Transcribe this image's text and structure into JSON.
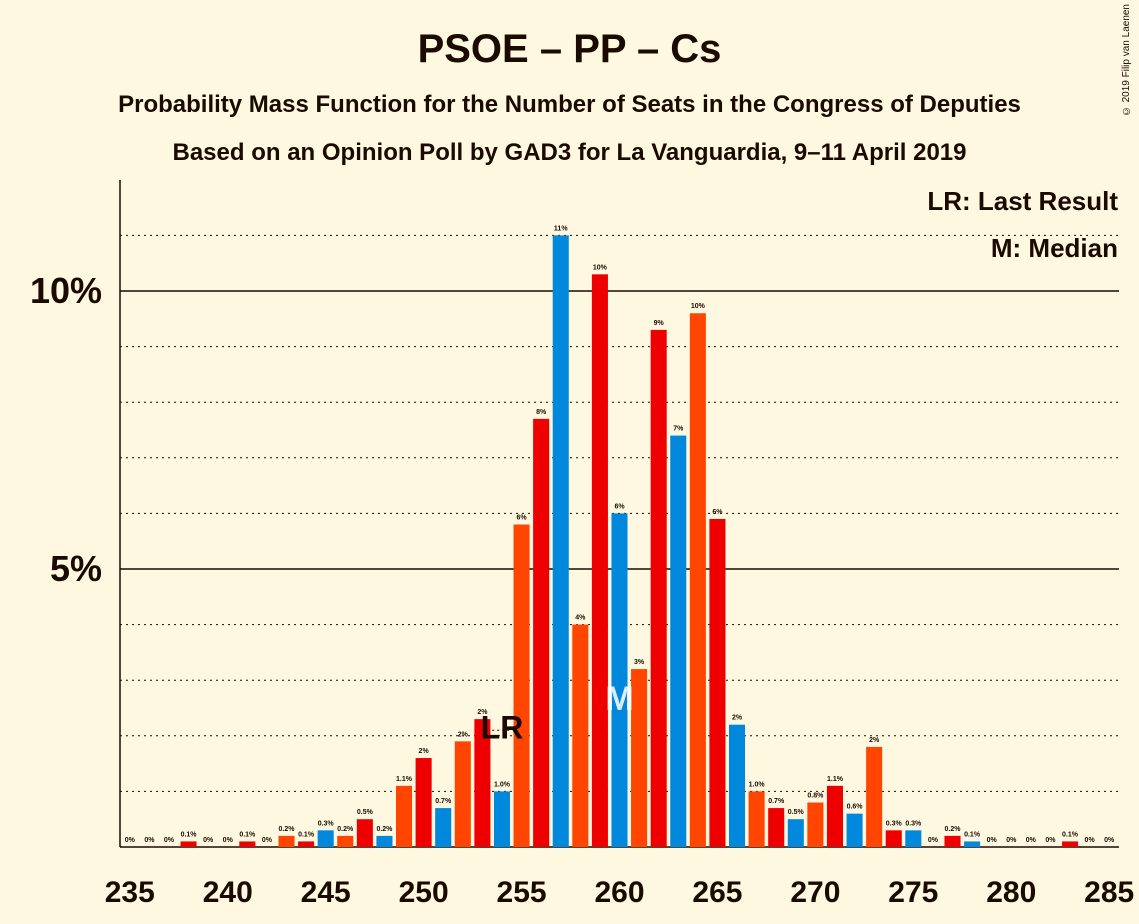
{
  "title": "PSOE – PP – Cs",
  "subtitle": "Probability Mass Function for the Number of Seats in the Congress of Deputies",
  "subtitle2": "Based on an Opinion Poll by GAD3 for La Vanguardia, 9–11 April 2019",
  "copyright": "© 2019 Filip van Laenen",
  "legend": [
    "LR: Last Result",
    "M: Median"
  ],
  "colors": {
    "psoe": "#ef0000",
    "pp": "#0088dd",
    "cs": "#ff4500",
    "background": "#fff8e1",
    "text": "#1a0a00"
  },
  "chart_data": {
    "type": "bar",
    "x": [
      235,
      236,
      237,
      238,
      239,
      240,
      241,
      242,
      243,
      244,
      245,
      246,
      247,
      248,
      249,
      250,
      251,
      252,
      253,
      254,
      255,
      256,
      257,
      258,
      259,
      260,
      261,
      262,
      263,
      264,
      265,
      266,
      267,
      268,
      269,
      270,
      271,
      272,
      273,
      274,
      275,
      276,
      277,
      278,
      279,
      280,
      281,
      282,
      283,
      284,
      285
    ],
    "values": [
      0,
      0,
      0,
      0.1,
      0,
      0,
      0.1,
      0,
      0.2,
      0.1,
      0.3,
      0.2,
      0.5,
      0.2,
      1.1,
      1.6,
      0.7,
      1.9,
      2.3,
      1.0,
      5.8,
      7.7,
      11.0,
      4.0,
      10.3,
      6.0,
      3.2,
      9.3,
      7.4,
      9.6,
      5.9,
      2.2,
      1.0,
      0.7,
      0.5,
      0.8,
      1.1,
      0.6,
      1.8,
      0.3,
      0.3,
      0,
      0.2,
      0.1,
      0,
      0,
      0,
      0,
      0.1,
      0,
      0
    ],
    "labels": [
      "0%",
      "0%",
      "0%",
      "0.1%",
      "0%",
      "0%",
      "0.1%",
      "0%",
      "0.2%",
      "0.1%",
      "0.3%",
      "0.2%",
      "0.5%",
      "0.2%",
      "1.1%",
      "2%",
      "0.7%",
      "2%",
      "2%",
      "1.0%",
      "6%",
      "8%",
      "11%",
      "4%",
      "10%",
      "6%",
      "3%",
      "9%",
      "7%",
      "10%",
      "6%",
      "2%",
      "1.0%",
      "0.7%",
      "0.5%",
      "0.8%",
      "1.1%",
      "0.6%",
      "2%",
      "0.3%",
      "0.3%",
      "0%",
      "0.2%",
      "0.1%",
      "0%",
      "0%",
      "0%",
      "0%",
      "0.1%",
      "0%",
      "0%"
    ],
    "bar_colors": [
      "psoe",
      "pp",
      "cs"
    ],
    "x_ticks": [
      "235",
      "240",
      "245",
      "250",
      "255",
      "260",
      "265",
      "270",
      "275",
      "280",
      "285"
    ],
    "y_ticks": [
      "5%",
      "10%"
    ],
    "ylim": [
      0,
      12
    ],
    "last_result_seat": 254,
    "last_result_label": "LR",
    "median_seat": 260,
    "median_label": "M",
    "grid": "dotted every 1%, solid at 5% and 10%"
  }
}
